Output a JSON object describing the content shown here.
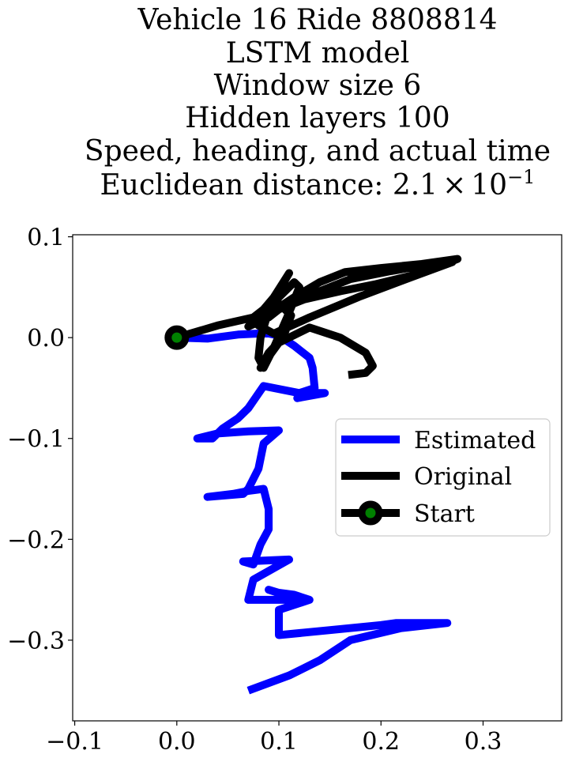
{
  "chart_data": {
    "type": "line",
    "title_lines": [
      "Vehicle 16 Ride 8808814",
      "LSTM model",
      "Window size 6",
      "Hidden layers 100",
      "Speed, heading, and actual time"
    ],
    "title_metric": {
      "prefix": "Euclidean distance: 2.1",
      "times": "×",
      "base": "10",
      "exponent": "−1"
    },
    "xlabel": "",
    "ylabel": "",
    "xlim": [
      -0.102,
      0.377
    ],
    "ylim": [
      -0.38,
      0.102
    ],
    "x_ticks": [
      {
        "value": -0.1,
        "label": "−0.1"
      },
      {
        "value": 0.0,
        "label": "0.0"
      },
      {
        "value": 0.1,
        "label": "0.1"
      },
      {
        "value": 0.2,
        "label": "0.2"
      },
      {
        "value": 0.3,
        "label": "0.3"
      }
    ],
    "y_ticks": [
      {
        "value": 0.1,
        "label": "0.1"
      },
      {
        "value": 0.0,
        "label": "0.0"
      },
      {
        "value": -0.1,
        "label": "−0.1"
      },
      {
        "value": -0.2,
        "label": "−0.2"
      },
      {
        "value": -0.3,
        "label": "−0.3"
      }
    ],
    "grid": false,
    "legend_position": "center-right",
    "start": {
      "label": "Start",
      "x": 0.0,
      "y": 0.0,
      "edge_color": "#000000",
      "face_color": "#008000"
    },
    "series": [
      {
        "name": "Estimated",
        "color": "#0000ff",
        "x": [
          0.0,
          0.03,
          0.06,
          0.08,
          0.09,
          0.1,
          0.115,
          0.13,
          0.133,
          0.135,
          0.12,
          0.118,
          0.145,
          0.12,
          0.085,
          0.07,
          0.06,
          0.045,
          0.035,
          0.02,
          0.04,
          0.07,
          0.1,
          0.085,
          0.08,
          0.07,
          0.065,
          0.03,
          0.055,
          0.07,
          0.085,
          0.09,
          0.09,
          0.082,
          0.075,
          0.065,
          0.11,
          0.075,
          0.07,
          0.12,
          0.09,
          0.1,
          0.115,
          0.13,
          0.1,
          0.1,
          0.15,
          0.2,
          0.215,
          0.265,
          0.22,
          0.17,
          0.14,
          0.11,
          0.07
        ],
        "y": [
          0.0,
          -0.001,
          0.003,
          0.004,
          0.004,
          0.002,
          -0.008,
          -0.02,
          -0.03,
          -0.05,
          -0.055,
          -0.06,
          -0.055,
          -0.055,
          -0.048,
          -0.07,
          -0.08,
          -0.09,
          -0.1,
          -0.1,
          -0.095,
          -0.093,
          -0.092,
          -0.105,
          -0.13,
          -0.15,
          -0.155,
          -0.158,
          -0.155,
          -0.152,
          -0.15,
          -0.17,
          -0.19,
          -0.205,
          -0.225,
          -0.222,
          -0.22,
          -0.24,
          -0.26,
          -0.26,
          -0.25,
          -0.253,
          -0.255,
          -0.26,
          -0.27,
          -0.295,
          -0.29,
          -0.285,
          -0.283,
          -0.283,
          -0.288,
          -0.3,
          -0.32,
          -0.335,
          -0.35
        ]
      },
      {
        "name": "Original",
        "color": "#000000",
        "x": [
          0.0,
          0.04,
          0.075,
          0.085,
          0.095,
          0.11,
          0.098,
          0.088,
          0.082,
          0.08,
          0.085,
          0.095,
          0.108,
          0.12,
          0.115,
          0.095,
          0.085,
          0.115,
          0.14,
          0.165,
          0.2,
          0.24,
          0.275,
          0.24,
          0.195,
          0.16,
          0.125,
          0.1,
          0.09,
          0.07,
          0.085,
          0.11,
          0.145,
          0.17,
          0.21,
          0.25,
          0.27,
          0.23,
          0.18,
          0.13,
          0.095,
          0.08,
          0.09,
          0.1,
          0.112,
          0.104,
          0.09,
          0.082,
          0.1,
          0.13,
          0.16,
          0.185,
          0.192,
          0.185,
          0.168
        ],
        "y": [
          0.0,
          0.012,
          0.02,
          0.028,
          0.04,
          0.064,
          0.043,
          0.02,
          0.0,
          -0.02,
          -0.03,
          -0.01,
          0.02,
          0.05,
          0.055,
          0.035,
          0.02,
          0.04,
          0.055,
          0.065,
          0.069,
          0.073,
          0.078,
          0.064,
          0.053,
          0.046,
          0.038,
          0.028,
          0.02,
          0.011,
          0.022,
          0.034,
          0.048,
          0.058,
          0.066,
          0.073,
          0.075,
          0.06,
          0.041,
          0.02,
          0.004,
          0.012,
          0.025,
          0.034,
          0.022,
          0.0,
          -0.015,
          -0.03,
          -0.005,
          0.01,
          0.0,
          -0.015,
          -0.028,
          -0.035,
          -0.037
        ]
      }
    ]
  }
}
